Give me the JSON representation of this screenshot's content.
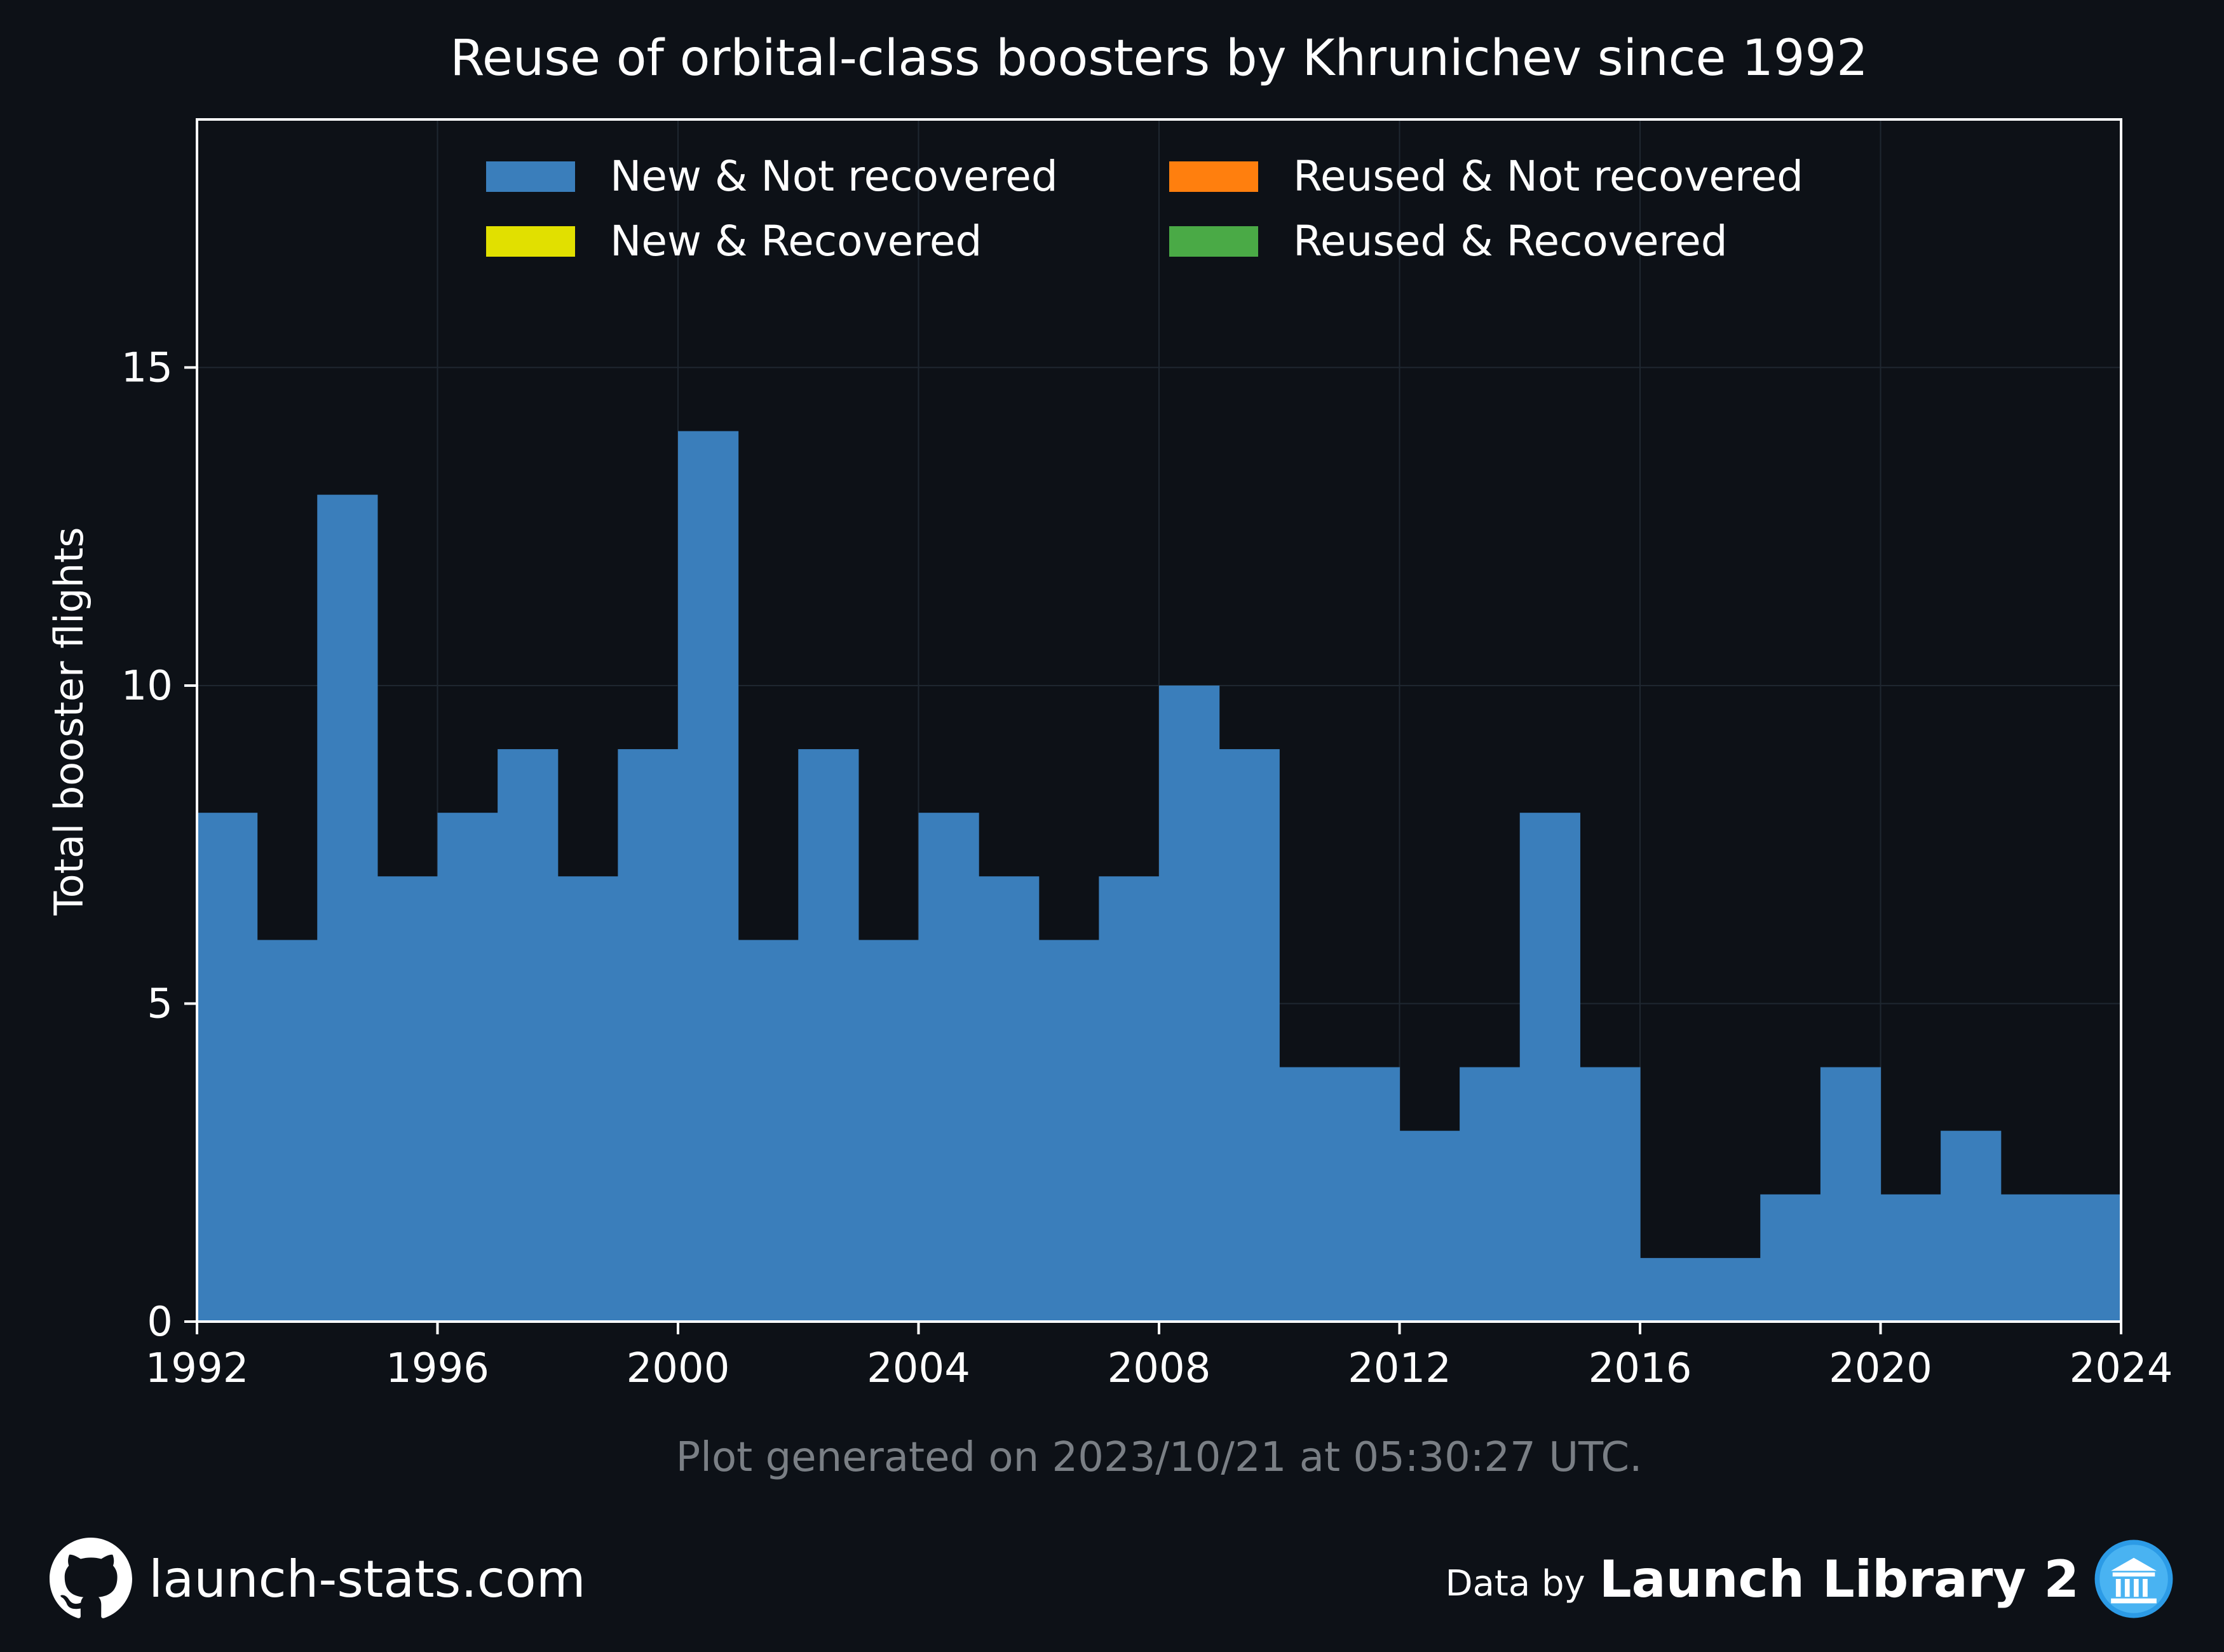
{
  "chart_data": {
    "type": "bar",
    "title": "Reuse of orbital-class boosters by Khrunichev since 1992",
    "ylabel": "Total booster flights",
    "xlabel": "",
    "x_bin_starts": [
      1992,
      1993,
      1994,
      1995,
      1996,
      1997,
      1998,
      1999,
      2000,
      2001,
      2002,
      2003,
      2004,
      2005,
      2006,
      2007,
      2008,
      2009,
      2010,
      2011,
      2012,
      2013,
      2014,
      2015,
      2016,
      2017,
      2018,
      2019,
      2020,
      2021,
      2022,
      2023
    ],
    "series": [
      {
        "name": "New & Not recovered",
        "color": "#3a7ebb",
        "values": [
          8,
          6,
          13,
          7,
          8,
          9,
          7,
          9,
          14,
          6,
          9,
          6,
          8,
          7,
          6,
          7,
          10,
          9,
          4,
          4,
          3,
          4,
          8,
          4,
          1,
          1,
          2,
          4,
          2,
          3,
          2,
          2
        ]
      },
      {
        "name": "New & Recovered",
        "color": "#e1e000",
        "values": [
          0,
          0,
          0,
          0,
          0,
          0,
          0,
          0,
          0,
          0,
          0,
          0,
          0,
          0,
          0,
          0,
          0,
          0,
          0,
          0,
          0,
          0,
          0,
          0,
          0,
          0,
          0,
          0,
          0,
          0,
          0,
          0
        ]
      },
      {
        "name": "Reused & Not recovered",
        "color": "#ff7f0e",
        "values": [
          0,
          0,
          0,
          0,
          0,
          0,
          0,
          0,
          0,
          0,
          0,
          0,
          0,
          0,
          0,
          0,
          0,
          0,
          0,
          0,
          0,
          0,
          0,
          0,
          0,
          0,
          0,
          0,
          0,
          0,
          0,
          0
        ]
      },
      {
        "name": "Reused & Recovered",
        "color": "#4aaa46",
        "values": [
          0,
          0,
          0,
          0,
          0,
          0,
          0,
          0,
          0,
          0,
          0,
          0,
          0,
          0,
          0,
          0,
          0,
          0,
          0,
          0,
          0,
          0,
          0,
          0,
          0,
          0,
          0,
          0,
          0,
          0,
          0,
          0
        ]
      }
    ],
    "xlim": [
      1992,
      2024
    ],
    "ylim": [
      0,
      18.9
    ],
    "xticks": [
      1992,
      1996,
      2000,
      2004,
      2008,
      2012,
      2016,
      2020,
      2024
    ],
    "yticks": [
      0,
      5,
      10,
      15
    ],
    "legend_order": [
      "New & Not recovered",
      "Reused & Not recovered",
      "New & Recovered",
      "Reused & Recovered"
    ],
    "legend_position": "top-center",
    "grid": true,
    "subtitle_note": "Plot generated on 2023/10/21 at 05:30:27 UTC."
  },
  "colors": {
    "background": "#0d1117",
    "grid": "#1f2730",
    "axes": "#ffffff",
    "note": "#7a7f85"
  },
  "footer": {
    "site": "launch-stats.com",
    "data_by": "Data by",
    "provider": "Launch Library 2",
    "github_icon": "github-icon",
    "provider_icon": "launch-library-icon"
  }
}
